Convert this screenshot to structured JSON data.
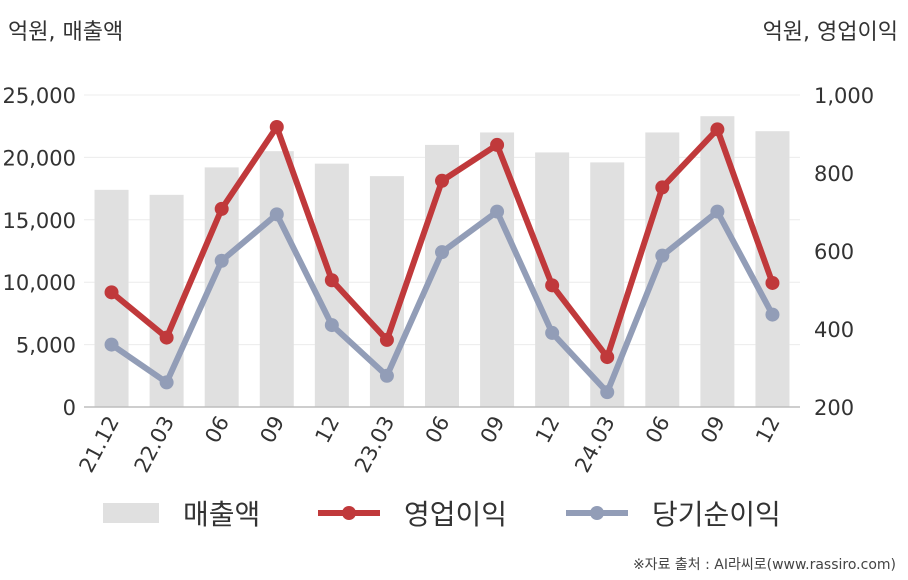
{
  "left_unit": "억원, 매출액",
  "right_unit": "억원, 영업이익",
  "source": "※자료 출처 : AI라씨로(www.rassiro.com)",
  "colors": {
    "revenue": "#e0e0e0",
    "operating_profit": "#c0393b",
    "net_income": "#929db7"
  },
  "chart_data": {
    "type": "bar+line",
    "categories": [
      "21.12",
      "22.03",
      "06",
      "09",
      "12",
      "23.03",
      "06",
      "09",
      "12",
      "24.03",
      "06",
      "09",
      "12"
    ],
    "y_left": {
      "label": "억원, 매출액",
      "ylim": [
        0,
        25000
      ],
      "ticks": [
        "25,000",
        "20,000",
        "15,000",
        "10,000",
        "5,000",
        "0"
      ],
      "tick_values": [
        25000,
        20000,
        15000,
        10000,
        5000,
        0
      ]
    },
    "y_right": {
      "label": "억원, 영업이익",
      "ylim": [
        200,
        1000
      ],
      "ticks": [
        "1,000",
        "800",
        "600",
        "400",
        "200"
      ],
      "tick_values": [
        1000,
        800,
        600,
        400,
        200
      ]
    },
    "grid": true,
    "legend_position": "bottom",
    "series": [
      {
        "name": "매출액",
        "type": "bar",
        "axis": "left",
        "values": [
          17400,
          17000,
          19200,
          20500,
          19500,
          18500,
          21000,
          22000,
          20400,
          19600,
          22000,
          23300,
          22100
        ]
      },
      {
        "name": "영업이익",
        "type": "line",
        "axis": "right",
        "values": [
          494,
          378,
          708,
          918,
          525,
          372,
          780,
          872,
          512,
          328,
          763,
          912,
          518
        ]
      },
      {
        "name": "당기순이익",
        "type": "line",
        "axis": "right",
        "values": [
          360,
          263,
          575,
          694,
          410,
          280,
          597,
          701,
          390,
          238,
          588,
          701,
          437
        ]
      }
    ]
  }
}
